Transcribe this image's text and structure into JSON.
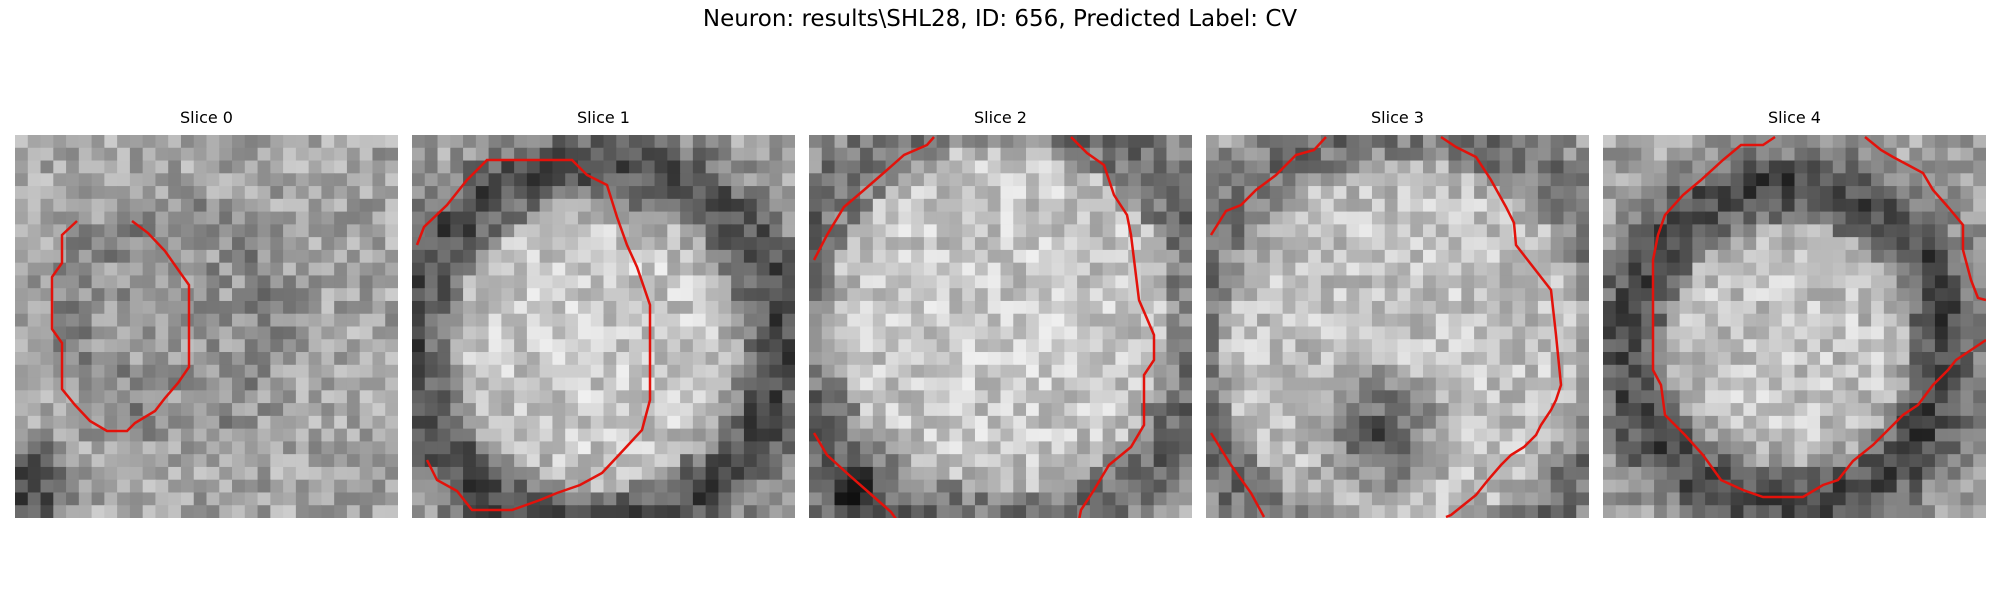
{
  "figure": {
    "title": "Neuron: results\\SHL28, ID: 656, Predicted Label: CV"
  },
  "panels": [
    {
      "title": "Slice 0"
    },
    {
      "title": "Slice 1"
    },
    {
      "title": "Slice 2"
    },
    {
      "title": "Slice 3"
    },
    {
      "title": "Slice 4"
    }
  ],
  "colors": {
    "contour": "#e3120b",
    "background": "#ffffff",
    "colormap": "gray"
  }
}
